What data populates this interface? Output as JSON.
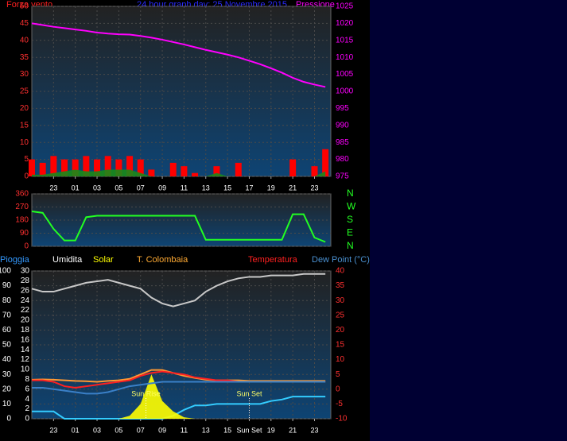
{
  "chart_data": [
    {
      "type": "combo",
      "title": "24 hour graph day: 25 Novembre 2015",
      "x": [
        21,
        22,
        23,
        24,
        25,
        26,
        27,
        28,
        29,
        30,
        31,
        32,
        33,
        34,
        35,
        36,
        37,
        38,
        39,
        40,
        41,
        42,
        43,
        44,
        45,
        46,
        47,
        48
      ],
      "xlim": [
        21,
        48.5
      ],
      "xticks": [
        23,
        {
          "value": 25,
          "label": "01"
        },
        {
          "value": 27,
          "label": "03"
        },
        {
          "value": 29,
          "label": "05"
        },
        {
          "value": 31,
          "label": "07"
        },
        {
          "value": 33,
          "label": "09"
        },
        {
          "value": 35,
          "label": "11"
        },
        {
          "value": 37,
          "label": "13"
        },
        {
          "value": 39,
          "label": "15"
        },
        {
          "value": 41,
          "label": "17"
        },
        {
          "value": 43,
          "label": "19"
        },
        {
          "value": 45,
          "label": "21"
        },
        {
          "value": 47,
          "label": "23"
        }
      ],
      "ylim": [
        0,
        50
      ],
      "yticks": [
        0,
        5,
        10,
        15,
        20,
        25,
        30,
        35,
        40,
        45,
        50
      ],
      "y2lim": [
        975,
        1025
      ],
      "y2ticks": [
        975,
        980,
        985,
        990,
        995,
        1000,
        1005,
        1010,
        1015,
        1020,
        1025
      ],
      "grid": true,
      "series": [
        {
          "name": "Forza vento",
          "type": "bar",
          "color": "#ff0000",
          "values": [
            5,
            4,
            6,
            5,
            5,
            6,
            5,
            6,
            5,
            6,
            5,
            2,
            0,
            4,
            3,
            1,
            0,
            3,
            0,
            4,
            0,
            0,
            0,
            0,
            5,
            0,
            3,
            8
          ]
        },
        {
          "type": "area",
          "color": "#1a8a1a",
          "values": [
            0.5,
            0.5,
            1,
            1.5,
            2,
            1.5,
            1.5,
            2,
            2,
            2,
            1,
            0,
            0,
            0,
            0,
            0,
            0,
            1,
            0,
            0,
            0,
            0,
            0,
            0,
            0,
            0,
            0,
            1.5
          ]
        },
        {
          "name": "Pressione",
          "type": "line",
          "axis": "y2",
          "color": "#ff00ff",
          "values": [
            1020,
            1019.5,
            1019,
            1018.6,
            1018.2,
            1017.8,
            1017.3,
            1017,
            1016.8,
            1016.7,
            1016.3,
            1015.8,
            1015.2,
            1014.5,
            1013.8,
            1013,
            1012.2,
            1011.5,
            1010.8,
            1010,
            1009,
            1008,
            1006.8,
            1005.5,
            1004,
            1002.8,
            1002,
            1001.3
          ]
        }
      ]
    },
    {
      "type": "combo",
      "x": [
        21,
        22,
        23,
        24,
        25,
        26,
        27,
        28,
        29,
        30,
        31,
        32,
        33,
        34,
        35,
        36,
        37,
        38,
        39,
        40,
        41,
        42,
        43,
        44,
        45,
        46,
        47,
        48
      ],
      "xlim": [
        21,
        48.5
      ],
      "ylim": [
        0,
        360
      ],
      "yticks": [
        0,
        90,
        180,
        270,
        360
      ],
      "y2lim": [
        0,
        360
      ],
      "y2ticks": [
        {
          "value": 360,
          "label": "N"
        },
        {
          "value": 270,
          "label": "W"
        },
        {
          "value": 180,
          "label": "S"
        },
        {
          "value": 90,
          "label": "E"
        },
        {
          "value": 0,
          "label": "N"
        }
      ],
      "grid": true,
      "series": [
        {
          "type": "line",
          "color": "#22ff22",
          "values": [
            240,
            230,
            120,
            40,
            40,
            200,
            210,
            210,
            210,
            210,
            210,
            210,
            210,
            210,
            210,
            210,
            45,
            45,
            45,
            45,
            45,
            45,
            45,
            45,
            220,
            220,
            60,
            30
          ]
        }
      ]
    },
    {
      "type": "combo",
      "x": [
        21,
        22,
        23,
        24,
        25,
        26,
        27,
        28,
        29,
        30,
        31,
        32,
        33,
        34,
        35,
        36,
        37,
        38,
        39,
        40,
        41,
        42,
        43,
        44,
        45,
        46,
        47,
        48
      ],
      "xlim": [
        21,
        48.5
      ],
      "xticks": [
        23,
        {
          "value": 25,
          "label": "01"
        },
        {
          "value": 27,
          "label": "03"
        },
        {
          "value": 29,
          "label": "05"
        },
        {
          "value": 31,
          "label": "07"
        },
        {
          "value": 33,
          "label": "09"
        },
        {
          "value": 35,
          "label": "11"
        },
        {
          "value": 37,
          "label": "13"
        },
        {
          "value": 39,
          "label": "15"
        },
        {
          "value": 41,
          "label": "Sun Set"
        },
        {
          "value": 43,
          "label": "19"
        },
        {
          "value": 45,
          "label": "21"
        },
        {
          "value": 47,
          "label": "23"
        }
      ],
      "ylim": [
        0,
        100
      ],
      "yticks": [
        0,
        10,
        20,
        30,
        40,
        50,
        60,
        70,
        80,
        90,
        100
      ],
      "y3lim": [
        0,
        30
      ],
      "y3ticks": [
        0,
        2,
        4,
        6,
        8,
        10,
        12,
        14,
        16,
        18,
        20,
        22,
        24,
        26,
        28,
        30
      ],
      "y2lim": [
        -10,
        40
      ],
      "y2ticks": [
        -10,
        -5,
        0,
        5,
        10,
        15,
        20,
        25,
        30,
        35,
        40
      ],
      "grid": true,
      "annotations": [
        {
          "text": "Sun Rise",
          "x": 31.5
        },
        {
          "text": "Sun Set",
          "x": 41
        }
      ],
      "series": [
        {
          "name": "Pioggia",
          "type": "line",
          "color": "#33ccff",
          "values": [
            5,
            5,
            5,
            0,
            0,
            0,
            0,
            0,
            0,
            0,
            0,
            0,
            0,
            2,
            6,
            9,
            9,
            10,
            10,
            10,
            10,
            10,
            12,
            13,
            15,
            15,
            15,
            15
          ]
        },
        {
          "name": "Umidita",
          "type": "line",
          "color": "#c8c8c8",
          "values": [
            88,
            86,
            86,
            88,
            90,
            92,
            93,
            94,
            92,
            90,
            88,
            82,
            78,
            76,
            78,
            80,
            86,
            90,
            93,
            95,
            96,
            96,
            97,
            97,
            97,
            98,
            98,
            98
          ]
        },
        {
          "name": "Solar",
          "type": "area",
          "color": "#ffff00",
          "values": [
            0,
            0,
            0,
            0,
            0,
            0,
            0,
            0,
            0,
            2,
            10,
            30,
            12,
            5,
            1,
            0,
            0,
            0,
            0,
            0,
            0,
            0,
            0,
            0,
            0,
            0,
            0,
            0
          ]
        },
        {
          "name": "T. Colombaia",
          "type": "line",
          "axis": "y2",
          "color": "#ff9933",
          "values": [
            3.2,
            3.3,
            3.2,
            3,
            2.8,
            2.7,
            2.5,
            2.8,
            3,
            3.5,
            5,
            6.5,
            6.5,
            5.5,
            4.5,
            3.8,
            3.2,
            3,
            3,
            3,
            2.8,
            2.8,
            2.8,
            2.8,
            2.8,
            2.8,
            2.8,
            2.8
          ]
        },
        {
          "name": "Temperatura",
          "type": "line",
          "axis": "y2",
          "color": "#ff2020",
          "values": [
            3,
            3,
            2.5,
            1,
            0.5,
            1,
            1.5,
            2,
            2.5,
            3,
            4.5,
            5.5,
            6,
            5.5,
            5,
            4,
            3.5,
            3,
            3,
            2.5,
            2.5,
            2.5,
            2.5,
            2.5,
            2.5,
            2.5,
            2.5,
            2.5
          ]
        },
        {
          "name": "Dew Point (°C)",
          "type": "line",
          "axis": "y2",
          "color": "#3a80c8",
          "values": [
            0.5,
            0.5,
            0,
            -0.5,
            -1,
            -1.5,
            -1.5,
            -1,
            0,
            1,
            1.5,
            2,
            2.5,
            2.5,
            2.5,
            2.5,
            2.5,
            2.5,
            2.5,
            2.5,
            2.5,
            2.5,
            2.5,
            2.5,
            2.5,
            2.5,
            2.5,
            2.5
          ]
        }
      ]
    }
  ]
}
